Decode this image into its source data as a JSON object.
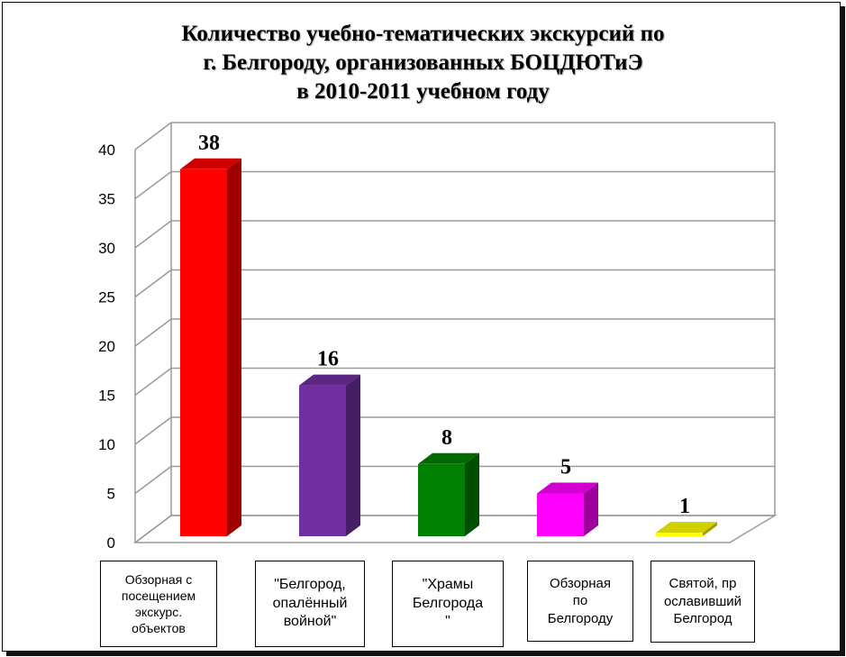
{
  "chart_data": {
    "type": "bar",
    "title_lines": [
      "Количество учебно-тематических экскурсий по",
      "г. Белгороду, организованных БОЦДЮТиЭ",
      "в 2010-2011 учебном году"
    ],
    "categories": [
      "Обзорная с посещением экскурс. объектов",
      "\"Белгород, опалённый войной\"",
      "\"Храмы Белгорода \"",
      "Обзорная по Белгороду",
      "Святой, пр ославивший Белгород"
    ],
    "category_lines": [
      [
        "Обзорная с",
        "посещением",
        "экскурс.",
        "объектов"
      ],
      [
        "\"Белгород,",
        "опалённый",
        "войной\""
      ],
      [
        "\"Храмы",
        "Белгорода",
        "\""
      ],
      [
        "Обзорная",
        "по",
        "Белгороду"
      ],
      [
        "Святой, пр",
        "ославивший",
        "Белгород"
      ]
    ],
    "values": [
      38,
      16,
      8,
      5,
      1
    ],
    "data_labels": [
      "38",
      "16",
      "8",
      "5",
      "1"
    ],
    "colors": [
      "#ff0000",
      "#7030a0",
      "#008000",
      "#ff00ff",
      "#ffff00"
    ],
    "y_ticks": [
      "0",
      "5",
      "10",
      "15",
      "20",
      "25",
      "30",
      "35",
      "40"
    ],
    "ylim": [
      0,
      40
    ],
    "grid": true,
    "legend": "none",
    "chart_style": "3d-column"
  }
}
